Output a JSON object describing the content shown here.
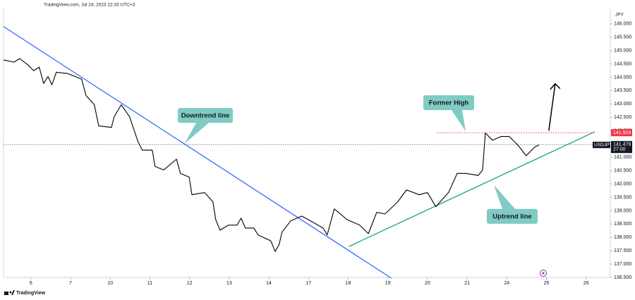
{
  "chart_data": {
    "type": "line",
    "header": "TradingView.com, Jul 24, 2023 22:33 UTC+3",
    "currency": "JPY",
    "brand": "TradingView",
    "xlim": [
      -0.69,
      14.61
    ],
    "xticks": [
      {
        "value": 0,
        "label": "6"
      },
      {
        "value": 1,
        "label": "7"
      },
      {
        "value": 2,
        "label": "10"
      },
      {
        "value": 3,
        "label": "11"
      },
      {
        "value": 4,
        "label": "12"
      },
      {
        "value": 5,
        "label": "13"
      },
      {
        "value": 6,
        "label": "14"
      },
      {
        "value": 7,
        "label": "17"
      },
      {
        "value": 8,
        "label": "18"
      },
      {
        "value": 9,
        "label": "19"
      },
      {
        "value": 10,
        "label": "20"
      },
      {
        "value": 11,
        "label": "21"
      },
      {
        "value": 12,
        "label": "24"
      },
      {
        "value": 13,
        "label": "25"
      },
      {
        "value": 14,
        "label": "26"
      }
    ],
    "ylim": [
      136.5,
      146.5
    ],
    "yticks": [
      {
        "value": 136.5,
        "label": "136.500"
      },
      {
        "value": 137,
        "label": "137.000"
      },
      {
        "value": 137.5,
        "label": "137.500"
      },
      {
        "value": 138,
        "label": "138.000"
      },
      {
        "value": 138.5,
        "label": "138.500"
      },
      {
        "value": 139,
        "label": "139.000"
      },
      {
        "value": 139.5,
        "label": "139.500"
      },
      {
        "value": 140,
        "label": "140.000"
      },
      {
        "value": 140.5,
        "label": "140.500"
      },
      {
        "value": 141,
        "label": "141.000"
      },
      {
        "value": 141.5,
        "label": "141.500"
      },
      {
        "value": 142,
        "label": "142.000"
      },
      {
        "value": 142.5,
        "label": "142.500"
      },
      {
        "value": 143,
        "label": "143.000"
      },
      {
        "value": 143.5,
        "label": "143.500"
      },
      {
        "value": 144,
        "label": "144.000"
      },
      {
        "value": 144.5,
        "label": "144.500"
      },
      {
        "value": 145,
        "label": "145.000"
      },
      {
        "value": 145.5,
        "label": "145.500"
      },
      {
        "value": 146,
        "label": "146.000"
      }
    ],
    "grid": false,
    "series": [
      {
        "name": "USDJPY",
        "color": "#000000",
        "x": [
          -0.69,
          -0.43,
          -0.28,
          -0.07,
          0.07,
          0.21,
          0.32,
          0.43,
          0.53,
          0.64,
          0.93,
          1.28,
          1.39,
          1.6,
          1.71,
          2.03,
          2.1,
          2.28,
          2.49,
          2.7,
          2.81,
          3.06,
          3.13,
          3.35,
          3.67,
          3.77,
          3.99,
          4.06,
          4.38,
          4.59,
          4.66,
          4.77,
          4.98,
          5.2,
          5.3,
          5.41,
          5.62,
          5.73,
          6.05,
          6.16,
          6.26,
          6.33,
          6.55,
          6.83,
          7.05,
          7.37,
          7.47,
          7.65,
          7.97,
          8.29,
          8.51,
          8.72,
          8.93,
          9.25,
          9.47,
          9.79,
          10.0,
          10.21,
          10.53,
          10.75,
          10.96,
          11.28,
          11.39,
          11.46,
          11.64,
          11.85,
          12.06,
          12.28,
          12.49,
          12.7,
          12.81
        ],
        "values": [
          144.65,
          144.57,
          144.7,
          144.46,
          144.25,
          144.38,
          143.77,
          144.03,
          143.72,
          144.19,
          144.14,
          143.93,
          143.32,
          142.97,
          142.18,
          142.12,
          142.52,
          142.97,
          142.52,
          141.59,
          141.27,
          141.27,
          140.66,
          140.53,
          140.93,
          140.4,
          140.26,
          139.6,
          139.68,
          139.33,
          138.67,
          138.27,
          138.46,
          138.46,
          138.72,
          138.35,
          138.35,
          138.09,
          137.87,
          137.47,
          137.74,
          138.19,
          138.62,
          138.8,
          138.62,
          138.35,
          138.09,
          139.07,
          138.67,
          138.46,
          138.14,
          138.94,
          138.88,
          139.33,
          139.78,
          139.6,
          139.68,
          139.15,
          139.68,
          140.4,
          140.4,
          140.32,
          140.53,
          141.91,
          141.64,
          141.78,
          141.78,
          141.46,
          141.06,
          141.38,
          141.46
        ]
      }
    ],
    "trendlines": [
      {
        "name": "Downtrend line",
        "color": "#2962ff",
        "x": [
          -0.69,
          9.09
        ],
        "y": [
          145.9,
          136.47
        ]
      },
      {
        "name": "Uptrend line",
        "color": "#089981",
        "x": [
          8.02,
          14.22
        ],
        "y": [
          137.66,
          141.96
        ]
      }
    ],
    "former_high": {
      "name": "Former High",
      "value": 141.924,
      "label": "141.924",
      "color": "#f23645",
      "x": [
        10.24,
        14.22
      ]
    },
    "last_price": {
      "value": 141.479,
      "label": "141.479",
      "countdown": "27:00",
      "color": "#131722"
    },
    "arrow": {
      "x": [
        13.06,
        13.22
      ],
      "y": [
        142.0,
        143.76
      ],
      "color": "#000000"
    }
  }
}
